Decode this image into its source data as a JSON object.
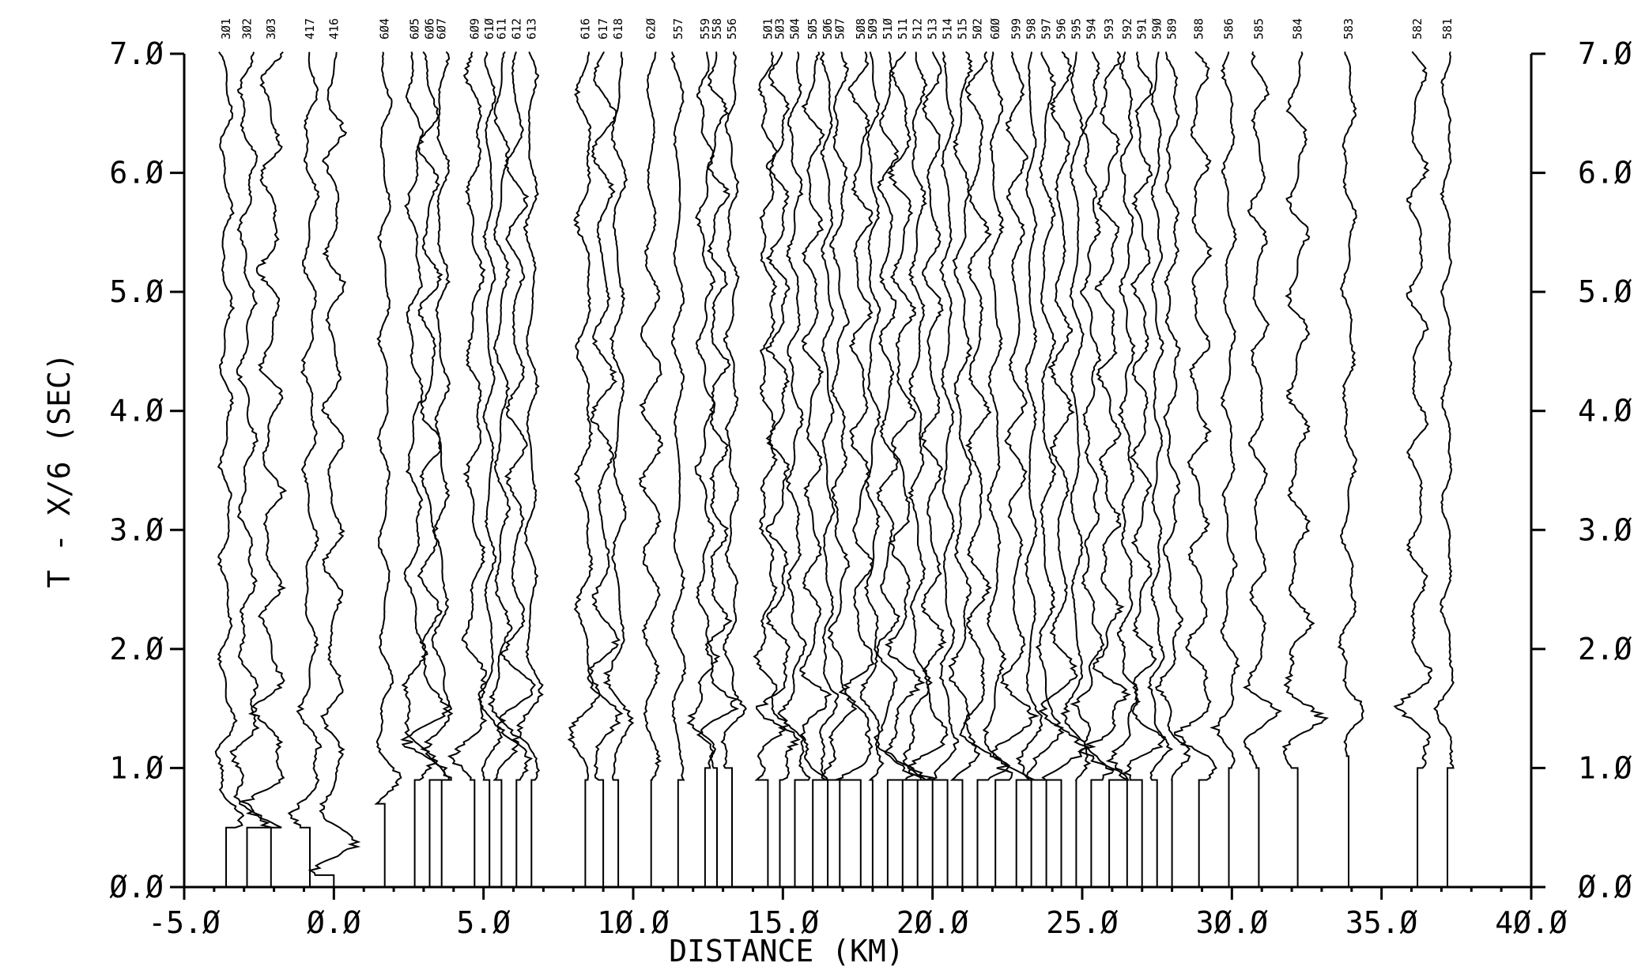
{
  "chart_data": {
    "type": "seismic-record-section",
    "title": "",
    "xlabel": "DISTANCE (KM)",
    "ylabel": "T - X/6 (SEC)",
    "xlim": [
      -5.0,
      40.0
    ],
    "ylim": [
      0.0,
      7.0
    ],
    "x_ticks": [
      -5.0,
      0.0,
      5.0,
      10.0,
      15.0,
      20.0,
      25.0,
      30.0,
      35.0,
      40.0
    ],
    "x_tick_labels": [
      "-5.Ø",
      "Ø.Ø",
      "5.Ø",
      "1Ø.Ø",
      "15.Ø",
      "2Ø.Ø",
      "25.Ø",
      "3Ø.Ø",
      "35.Ø",
      "4Ø.Ø"
    ],
    "y_ticks": [
      0.0,
      1.0,
      2.0,
      3.0,
      4.0,
      5.0,
      6.0,
      7.0
    ],
    "y_tick_labels": [
      "Ø.Ø",
      "1.Ø",
      "2.Ø",
      "3.Ø",
      "4.Ø",
      "5.Ø",
      "6.Ø",
      "7.Ø"
    ],
    "right_axis_labels": true,
    "grid": false,
    "traces": [
      {
        "station": "3Ø1",
        "x": -3.6,
        "onset": 0.5
      },
      {
        "station": "3Ø2",
        "x": -2.9,
        "onset": 0.5
      },
      {
        "station": "3Ø3",
        "x": -2.1,
        "onset": 0.5
      },
      {
        "station": "417",
        "x": -0.8,
        "onset": 0.5
      },
      {
        "station": "416",
        "x": 0.0,
        "onset": 0.1
      },
      {
        "station": "6Ø4",
        "x": 1.7,
        "onset": 0.7
      },
      {
        "station": "6Ø5",
        "x": 2.7,
        "onset": 0.9
      },
      {
        "station": "6Ø6",
        "x": 3.2,
        "onset": 0.9
      },
      {
        "station": "6Ø7",
        "x": 3.6,
        "onset": 0.9
      },
      {
        "station": "6Ø9",
        "x": 4.7,
        "onset": 0.9
      },
      {
        "station": "61Ø",
        "x": 5.2,
        "onset": 0.9
      },
      {
        "station": "611",
        "x": 5.6,
        "onset": 0.9
      },
      {
        "station": "612",
        "x": 6.1,
        "onset": 0.9
      },
      {
        "station": "613",
        "x": 6.6,
        "onset": 0.9
      },
      {
        "station": "616",
        "x": 8.4,
        "onset": 0.9
      },
      {
        "station": "617",
        "x": 9.0,
        "onset": 0.9
      },
      {
        "station": "618",
        "x": 9.5,
        "onset": 0.9
      },
      {
        "station": "62Ø",
        "x": 10.6,
        "onset": 0.9
      },
      {
        "station": "557",
        "x": 11.5,
        "onset": 0.9
      },
      {
        "station": "559",
        "x": 12.4,
        "onset": 1.0
      },
      {
        "station": "558",
        "x": 12.8,
        "onset": 1.0
      },
      {
        "station": "556",
        "x": 13.3,
        "onset": 1.0
      },
      {
        "station": "5Ø1",
        "x": 14.5,
        "onset": 0.9
      },
      {
        "station": "5Ø3",
        "x": 14.9,
        "onset": 0.9
      },
      {
        "station": "5Ø4",
        "x": 15.4,
        "onset": 0.9
      },
      {
        "station": "5Ø5",
        "x": 16.0,
        "onset": 0.9
      },
      {
        "station": "5Ø6",
        "x": 16.5,
        "onset": 0.9
      },
      {
        "station": "5Ø7",
        "x": 16.9,
        "onset": 0.9
      },
      {
        "station": "5Ø8",
        "x": 17.6,
        "onset": 0.9
      },
      {
        "station": "5Ø9",
        "x": 18.0,
        "onset": 0.9
      },
      {
        "station": "51Ø",
        "x": 18.5,
        "onset": 0.9
      },
      {
        "station": "511",
        "x": 19.0,
        "onset": 0.9
      },
      {
        "station": "512",
        "x": 19.5,
        "onset": 0.9
      },
      {
        "station": "513",
        "x": 20.0,
        "onset": 0.9
      },
      {
        "station": "514",
        "x": 20.5,
        "onset": 0.9
      },
      {
        "station": "515",
        "x": 21.0,
        "onset": 0.9
      },
      {
        "station": "5Ø2",
        "x": 21.5,
        "onset": 0.9
      },
      {
        "station": "6ØØ",
        "x": 22.1,
        "onset": 0.9
      },
      {
        "station": "599",
        "x": 22.8,
        "onset": 0.9
      },
      {
        "station": "598",
        "x": 23.3,
        "onset": 0.9
      },
      {
        "station": "597",
        "x": 23.8,
        "onset": 0.9
      },
      {
        "station": "596",
        "x": 24.3,
        "onset": 0.9
      },
      {
        "station": "595",
        "x": 24.8,
        "onset": 0.9
      },
      {
        "station": "594",
        "x": 25.3,
        "onset": 0.9
      },
      {
        "station": "593",
        "x": 25.9,
        "onset": 0.9
      },
      {
        "station": "592",
        "x": 26.5,
        "onset": 0.9
      },
      {
        "station": "591",
        "x": 27.0,
        "onset": 0.9
      },
      {
        "station": "59Ø",
        "x": 27.5,
        "onset": 0.9
      },
      {
        "station": "589",
        "x": 28.0,
        "onset": 0.9
      },
      {
        "station": "588",
        "x": 28.9,
        "onset": 0.9
      },
      {
        "station": "586",
        "x": 29.9,
        "onset": 1.0
      },
      {
        "station": "585",
        "x": 30.9,
        "onset": 1.0
      },
      {
        "station": "584",
        "x": 32.2,
        "onset": 1.0
      },
      {
        "station": "583",
        "x": 33.9,
        "onset": 1.1
      },
      {
        "station": "582",
        "x": 36.2,
        "onset": 1.0
      },
      {
        "station": "581",
        "x": 37.2,
        "onset": 1.0
      }
    ]
  }
}
